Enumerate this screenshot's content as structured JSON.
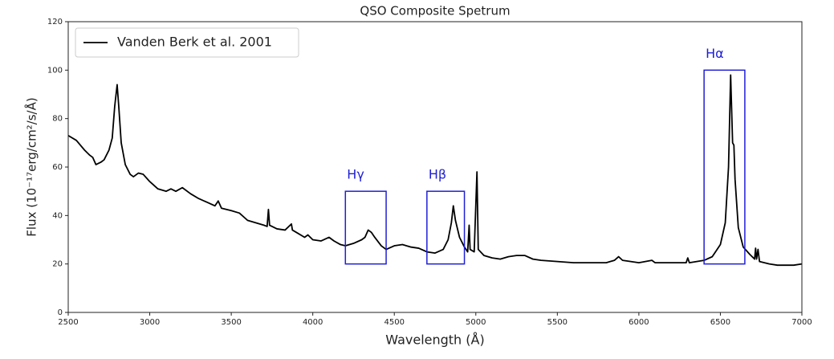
{
  "chart_data": {
    "type": "line",
    "title": "QSO Composite Spetrum",
    "xlabel": "Wavelength (Å)",
    "ylabel": "Flux (10⁻¹⁷erg/cm²/s/Å)",
    "xlim": [
      2500,
      7000
    ],
    "xticks": [
      2500,
      3000,
      3500,
      4000,
      4500,
      5000,
      5500,
      6000,
      6500,
      7000
    ],
    "ylim": [
      0,
      120
    ],
    "yticks": [
      0,
      20,
      40,
      60,
      80,
      100,
      120
    ],
    "legend": "upper left",
    "x": [
      2500,
      2550,
      2600,
      2630,
      2650,
      2670,
      2700,
      2720,
      2750,
      2770,
      2785,
      2800,
      2810,
      2825,
      2850,
      2880,
      2900,
      2930,
      2960,
      3000,
      3050,
      3100,
      3130,
      3160,
      3200,
      3250,
      3300,
      3350,
      3400,
      3420,
      3440,
      3500,
      3550,
      3600,
      3650,
      3700,
      3720,
      3728,
      3735,
      3780,
      3830,
      3869,
      3875,
      3900,
      3950,
      3970,
      4000,
      4050,
      4100,
      4130,
      4170,
      4200,
      4250,
      4300,
      4320,
      4340,
      4360,
      4380,
      4420,
      4450,
      4500,
      4550,
      4600,
      4650,
      4700,
      4750,
      4800,
      4830,
      4850,
      4862,
      4875,
      4900,
      4930,
      4950,
      4959,
      4965,
      4990,
      5007,
      5015,
      5050,
      5100,
      5150,
      5200,
      5250,
      5300,
      5350,
      5400,
      5500,
      5600,
      5700,
      5800,
      5850,
      5876,
      5900,
      6000,
      6080,
      6100,
      6200,
      6290,
      6300,
      6310,
      6400,
      6450,
      6500,
      6530,
      6550,
      6563,
      6575,
      6583,
      6590,
      6610,
      6640,
      6680,
      6710,
      6716,
      6722,
      6731,
      6740,
      6800,
      6850,
      6900,
      6950,
      7000
    ],
    "series": [
      {
        "name": "Vanden Berk et al. 2001",
        "color": "#000000",
        "values": [
          73,
          71,
          67,
          65,
          64,
          61,
          62,
          63,
          67,
          72,
          85,
          94,
          85,
          70,
          61,
          57,
          56,
          57.5,
          57,
          54,
          51,
          50,
          51,
          50,
          51.5,
          49,
          47,
          45.5,
          44,
          46,
          43,
          42,
          41,
          38,
          37,
          36,
          35.5,
          42.5,
          36,
          34.5,
          34,
          36.5,
          34,
          33,
          31,
          32,
          30,
          29.5,
          31,
          29.5,
          28,
          27.5,
          28.5,
          30,
          31,
          34,
          33,
          31,
          27.5,
          26,
          27.5,
          28,
          27,
          26.5,
          25,
          24.5,
          26,
          30,
          37,
          44,
          38,
          31,
          27,
          25,
          36,
          26,
          25,
          58,
          26,
          23.5,
          22.5,
          22,
          23,
          23.5,
          23.5,
          22,
          21.5,
          21,
          20.5,
          20.5,
          20.5,
          21.5,
          23,
          21.5,
          20.5,
          21.5,
          20.5,
          20.5,
          20.5,
          22.5,
          20.5,
          21.5,
          23,
          28,
          37,
          60,
          98,
          70,
          69,
          55,
          35,
          27,
          24,
          22,
          26.5,
          22,
          26,
          21,
          20,
          19.5,
          19.5,
          19.5,
          20
        ]
      }
    ],
    "annotations": [
      {
        "text": "Hγ",
        "color": "#1f1fd6",
        "x": [
          4200,
          4450
        ],
        "y": [
          20,
          50
        ]
      },
      {
        "text": "Hβ",
        "color": "#1f1fd6",
        "x": [
          4700,
          4930
        ],
        "y": [
          20,
          50
        ]
      },
      {
        "text": "Hα",
        "color": "#1f1fd6",
        "x": [
          6400,
          6650
        ],
        "y": [
          20,
          100
        ]
      }
    ]
  }
}
